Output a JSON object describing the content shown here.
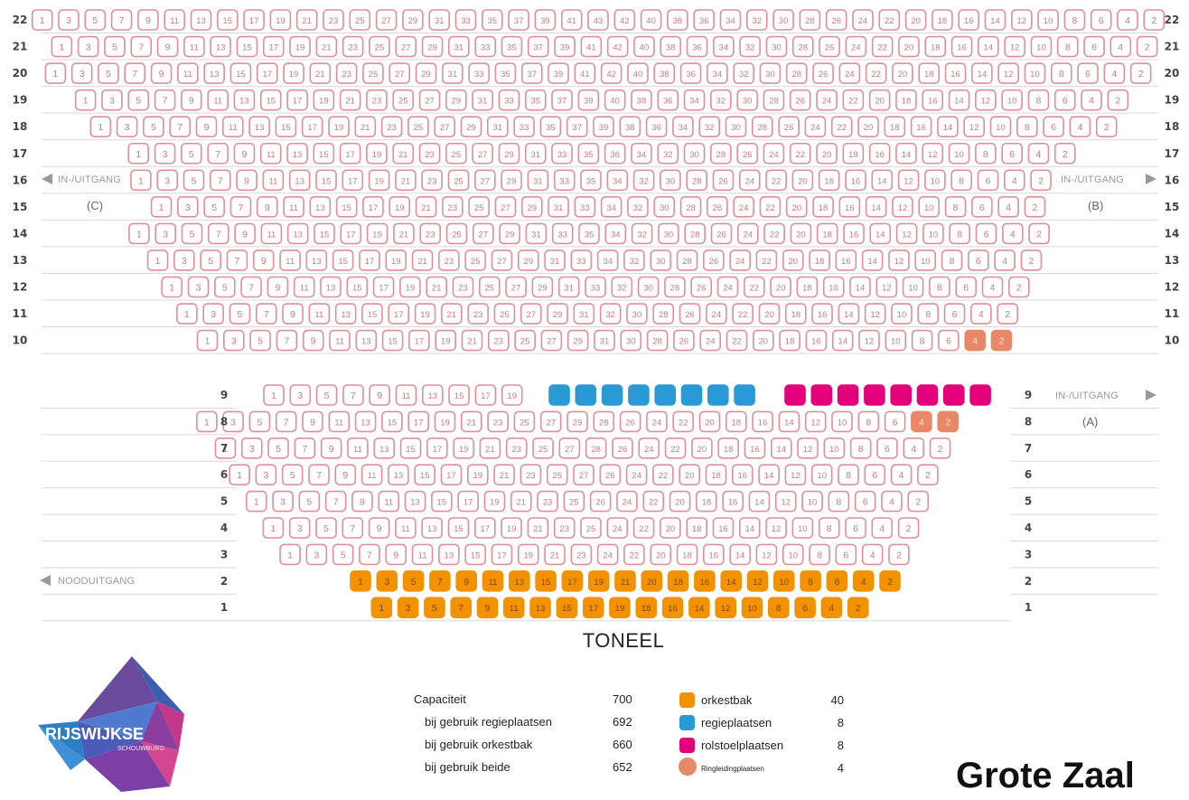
{
  "hall_title": "Grote Zaal",
  "stage_label": "TONEEL",
  "exits": {
    "c": {
      "label": "IN-/UITGANG",
      "code": "(C)"
    },
    "b": {
      "label": "IN-/UITGANG",
      "code": "(B)"
    },
    "a": {
      "label": "IN-/UITGANG",
      "code": "(A)"
    },
    "emergency": {
      "label": "NOODUITGANG"
    }
  },
  "logo": {
    "text": "RIJSWIJKSE",
    "subtext": "SCHOUWBURG"
  },
  "colors": {
    "regular_border": "#e08e97",
    "regular_text": "#c97b84",
    "orchestra": "#f29200",
    "direction": "#2a9ad6",
    "wheelchair": "#e3007a",
    "hearing_loop": "#e88866",
    "grid_line": "#d9d9d9",
    "label_gray": "#999999"
  },
  "capacity": [
    {
      "label": "Capaciteit",
      "value": "700"
    },
    {
      "label": "bij gebruik regieplaatsen",
      "value": "692"
    },
    {
      "label": "bij gebruik orkestbak",
      "value": "660"
    },
    {
      "label": "bij gebruik beide",
      "value": "652"
    }
  ],
  "legend": [
    {
      "label": "orkestbak",
      "value": "40",
      "color": "#f29200",
      "shape": "square"
    },
    {
      "label": "regieplaatsen",
      "value": "8",
      "color": "#2a9ad6",
      "shape": "square"
    },
    {
      "label": "rolstoelplaatsen",
      "value": "8",
      "color": "#e3007a",
      "shape": "square"
    },
    {
      "label": "Ringleidingplaatsen",
      "value": "4",
      "color": "#e88866",
      "shape": "circle"
    }
  ],
  "chart_data": {
    "type": "table",
    "rows": [
      {
        "row": 22,
        "seats": [
          "1",
          "3",
          "5",
          "7",
          "9",
          "11",
          "13",
          "15",
          "17",
          "19",
          "21",
          "23",
          "25",
          "27",
          "29",
          "31",
          "33",
          "35",
          "37",
          "39",
          "41",
          "43",
          "42",
          "40",
          "38",
          "36",
          "34",
          "32",
          "30",
          "28",
          "26",
          "24",
          "22",
          "20",
          "18",
          "16",
          "14",
          "12",
          "10",
          "8",
          "6",
          "4",
          "2"
        ]
      },
      {
        "row": 21,
        "seats": [
          "1",
          "3",
          "5",
          "7",
          "9",
          "11",
          "13",
          "15",
          "17",
          "19",
          "21",
          "23",
          "25",
          "27",
          "29",
          "31",
          "33",
          "35",
          "37",
          "39",
          "41",
          "42",
          "40",
          "38",
          "36",
          "34",
          "32",
          "30",
          "28",
          "26",
          "24",
          "22",
          "20",
          "18",
          "16",
          "14",
          "12",
          "10",
          "8",
          "6",
          "4",
          "2"
        ]
      },
      {
        "row": 20,
        "seats": [
          "1",
          "3",
          "5",
          "7",
          "9",
          "11",
          "13",
          "15",
          "17",
          "19",
          "21",
          "23",
          "25",
          "27",
          "29",
          "31",
          "33",
          "35",
          "37",
          "39",
          "41",
          "42",
          "40",
          "38",
          "36",
          "34",
          "32",
          "30",
          "28",
          "26",
          "24",
          "22",
          "20",
          "18",
          "16",
          "14",
          "12",
          "10",
          "8",
          "6",
          "4",
          "2"
        ]
      },
      {
        "row": 19,
        "seats": [
          "1",
          "3",
          "5",
          "7",
          "9",
          "11",
          "13",
          "15",
          "17",
          "19",
          "21",
          "23",
          "25",
          "27",
          "29",
          "31",
          "33",
          "35",
          "37",
          "39",
          "40",
          "38",
          "36",
          "34",
          "32",
          "30",
          "28",
          "26",
          "24",
          "22",
          "20",
          "18",
          "16",
          "14",
          "12",
          "10",
          "8",
          "6",
          "4",
          "2"
        ]
      },
      {
        "row": 18,
        "seats": [
          "1",
          "3",
          "5",
          "7",
          "9",
          "11",
          "13",
          "15",
          "17",
          "19",
          "21",
          "23",
          "25",
          "27",
          "29",
          "31",
          "33",
          "35",
          "37",
          "39",
          "38",
          "36",
          "34",
          "32",
          "30",
          "28",
          "26",
          "24",
          "22",
          "20",
          "18",
          "16",
          "14",
          "12",
          "10",
          "8",
          "6",
          "4",
          "2"
        ]
      },
      {
        "row": 17,
        "seats": [
          "1",
          "3",
          "5",
          "7",
          "9",
          "11",
          "13",
          "15",
          "17",
          "19",
          "21",
          "23",
          "25",
          "27",
          "29",
          "31",
          "33",
          "35",
          "36",
          "34",
          "32",
          "30",
          "28",
          "26",
          "24",
          "22",
          "20",
          "18",
          "16",
          "14",
          "12",
          "10",
          "8",
          "6",
          "4",
          "2"
        ]
      },
      {
        "row": 16,
        "seats": [
          "1",
          "3",
          "5",
          "7",
          "9",
          "11",
          "13",
          "15",
          "17",
          "19",
          "21",
          "23",
          "25",
          "27",
          "29",
          "31",
          "33",
          "35",
          "34",
          "32",
          "30",
          "28",
          "26",
          "24",
          "22",
          "20",
          "18",
          "16",
          "14",
          "12",
          "10",
          "8",
          "6",
          "4",
          "2"
        ]
      },
      {
        "row": 15,
        "seats": [
          "1",
          "3",
          "5",
          "7",
          "9",
          "11",
          "13",
          "15",
          "17",
          "19",
          "21",
          "23",
          "25",
          "27",
          "29",
          "31",
          "33",
          "34",
          "32",
          "30",
          "28",
          "26",
          "24",
          "22",
          "20",
          "18",
          "16",
          "14",
          "12",
          "10",
          "8",
          "6",
          "4",
          "2"
        ]
      },
      {
        "row": 14,
        "seats": [
          "1",
          "3",
          "5",
          "7",
          "9",
          "11",
          "13",
          "15",
          "17",
          "19",
          "21",
          "23",
          "25",
          "27",
          "29",
          "31",
          "33",
          "35",
          "34",
          "32",
          "30",
          "28",
          "26",
          "24",
          "22",
          "20",
          "18",
          "16",
          "14",
          "12",
          "10",
          "8",
          "6",
          "4",
          "2"
        ]
      },
      {
        "row": 13,
        "seats": [
          "1",
          "3",
          "5",
          "7",
          "9",
          "11",
          "13",
          "15",
          "17",
          "19",
          "21",
          "23",
          "25",
          "27",
          "29",
          "31",
          "33",
          "34",
          "32",
          "30",
          "28",
          "26",
          "24",
          "22",
          "20",
          "18",
          "16",
          "14",
          "12",
          "10",
          "8",
          "6",
          "4",
          "2"
        ]
      },
      {
        "row": 12,
        "seats": [
          "1",
          "3",
          "5",
          "7",
          "9",
          "11",
          "13",
          "15",
          "17",
          "19",
          "21",
          "23",
          "25",
          "27",
          "29",
          "31",
          "33",
          "32",
          "30",
          "28",
          "26",
          "24",
          "22",
          "20",
          "18",
          "16",
          "14",
          "12",
          "10",
          "8",
          "6",
          "4",
          "2"
        ]
      },
      {
        "row": 11,
        "seats": [
          "1",
          "3",
          "5",
          "7",
          "9",
          "11",
          "13",
          "15",
          "17",
          "19",
          "21",
          "23",
          "25",
          "27",
          "29",
          "31",
          "32",
          "30",
          "28",
          "26",
          "24",
          "22",
          "20",
          "18",
          "16",
          "14",
          "12",
          "10",
          "8",
          "6",
          "4",
          "2"
        ]
      },
      {
        "row": 10,
        "seats": [
          "1",
          "3",
          "5",
          "7",
          "9",
          "11",
          "13",
          "15",
          "17",
          "19",
          "21",
          "23",
          "25",
          "27",
          "29",
          "31",
          "30",
          "28",
          "26",
          "24",
          "22",
          "20",
          "18",
          "16",
          "14",
          "12",
          "10",
          "8",
          "6",
          "4",
          "2"
        ],
        "special": {
          "4": "hearing",
          "2": "hearing"
        }
      },
      {
        "row": 9,
        "seats": [
          "1",
          "3",
          "5",
          "7",
          "9",
          "11",
          "13",
          "15",
          "17",
          "19"
        ],
        "direction_seats": 8,
        "wheelchair_seats": 8
      },
      {
        "row": 8,
        "seats": [
          "1",
          "3",
          "5",
          "7",
          "9",
          "11",
          "13",
          "15",
          "17",
          "19",
          "21",
          "23",
          "25",
          "27",
          "29",
          "28",
          "26",
          "24",
          "22",
          "20",
          "18",
          "16",
          "14",
          "12",
          "10",
          "8",
          "6",
          "4",
          "2"
        ],
        "special": {
          "4": "hearing",
          "2": "hearing"
        }
      },
      {
        "row": 7,
        "seats": [
          "1",
          "3",
          "5",
          "7",
          "9",
          "11",
          "13",
          "15",
          "17",
          "19",
          "21",
          "23",
          "25",
          "27",
          "28",
          "26",
          "24",
          "22",
          "20",
          "18",
          "16",
          "14",
          "12",
          "10",
          "8",
          "6",
          "4",
          "2"
        ]
      },
      {
        "row": 6,
        "seats": [
          "1",
          "3",
          "5",
          "7",
          "9",
          "11",
          "13",
          "15",
          "17",
          "19",
          "21",
          "23",
          "25",
          "27",
          "26",
          "24",
          "22",
          "20",
          "18",
          "16",
          "14",
          "12",
          "10",
          "8",
          "6",
          "4",
          "2"
        ]
      },
      {
        "row": 5,
        "seats": [
          "1",
          "3",
          "5",
          "7",
          "9",
          "11",
          "13",
          "15",
          "17",
          "19",
          "21",
          "23",
          "25",
          "26",
          "24",
          "22",
          "20",
          "18",
          "16",
          "14",
          "12",
          "10",
          "8",
          "6",
          "4",
          "2"
        ]
      },
      {
        "row": 4,
        "seats": [
          "1",
          "3",
          "5",
          "7",
          "9",
          "11",
          "13",
          "15",
          "17",
          "19",
          "21",
          "23",
          "25",
          "24",
          "22",
          "20",
          "18",
          "16",
          "14",
          "12",
          "10",
          "8",
          "6",
          "4",
          "2"
        ]
      },
      {
        "row": 3,
        "seats": [
          "1",
          "3",
          "5",
          "7",
          "9",
          "11",
          "13",
          "15",
          "17",
          "19",
          "21",
          "23",
          "24",
          "22",
          "20",
          "18",
          "16",
          "14",
          "12",
          "10",
          "8",
          "6",
          "4",
          "2"
        ]
      },
      {
        "row": 2,
        "seats": [
          "1",
          "3",
          "5",
          "7",
          "9",
          "11",
          "13",
          "15",
          "17",
          "19",
          "21",
          "20",
          "18",
          "16",
          "14",
          "12",
          "10",
          "8",
          "6",
          "4",
          "2"
        ],
        "type": "orchestra"
      },
      {
        "row": 1,
        "seats": [
          "1",
          "3",
          "5",
          "7",
          "9",
          "11",
          "13",
          "15",
          "17",
          "19",
          "18",
          "16",
          "14",
          "12",
          "10",
          "8",
          "6",
          "4",
          "2"
        ],
        "type": "orchestra"
      }
    ]
  }
}
